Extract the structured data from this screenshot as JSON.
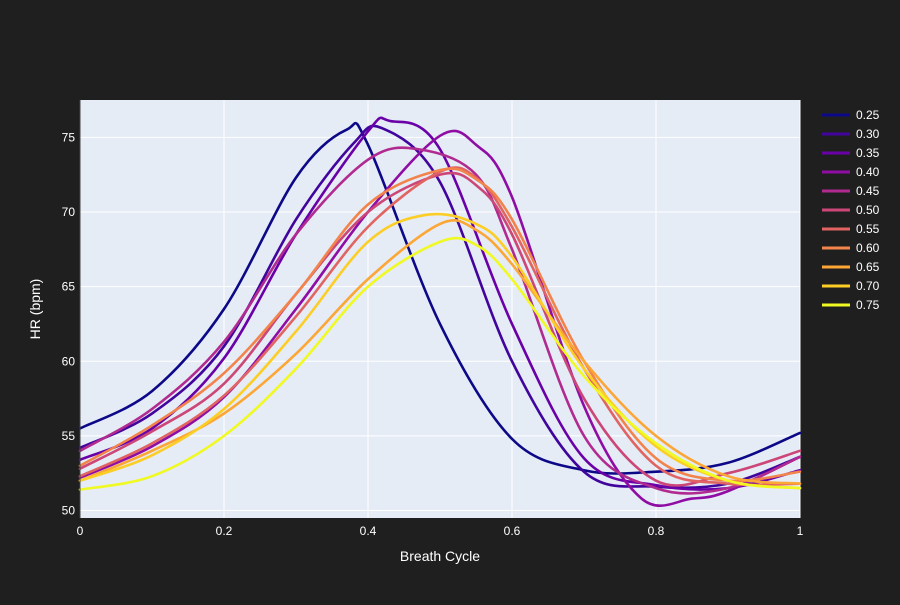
{
  "chart_data": {
    "type": "line",
    "title": "",
    "xlabel": "Breath Cycle",
    "ylabel": "HR (bpm)",
    "xlim": [
      0,
      1
    ],
    "ylim": [
      49.5,
      77.5
    ],
    "x_ticks": [
      0,
      0.2,
      0.4,
      0.6,
      0.8,
      1
    ],
    "x_tick_labels": [
      "0",
      "0.2",
      "0.4",
      "0.6",
      "0.8",
      "1"
    ],
    "y_ticks": [
      50,
      55,
      60,
      65,
      70,
      75
    ],
    "y_tick_labels": [
      "50",
      "55",
      "60",
      "65",
      "70",
      "75"
    ],
    "grid": true,
    "legend_position": "right",
    "plot_background": "#e5ecf6",
    "paper_background": "#1f1f1f",
    "x": [
      0,
      0.1,
      0.2,
      0.3,
      0.4,
      0.5,
      0.6,
      0.7,
      0.8,
      0.9,
      1
    ],
    "series": [
      {
        "name": "0.25",
        "color": "#0d0887",
        "points": [
          [
            0,
            55.5
          ],
          [
            0.1,
            58.0
          ],
          [
            0.2,
            63.5
          ],
          [
            0.3,
            72.3
          ],
          [
            0.37,
            75.5
          ],
          [
            0.4,
            74.5
          ],
          [
            0.5,
            62.5
          ],
          [
            0.6,
            54.8
          ],
          [
            0.7,
            52.7
          ],
          [
            0.8,
            52.6
          ],
          [
            0.9,
            53.2
          ],
          [
            1,
            55.2
          ]
        ]
      },
      {
        "name": "0.30",
        "color": "#41049d",
        "points": [
          [
            0,
            54.2
          ],
          [
            0.1,
            56.5
          ],
          [
            0.2,
            61.0
          ],
          [
            0.3,
            69.5
          ],
          [
            0.38,
            74.6
          ],
          [
            0.42,
            75.6
          ],
          [
            0.5,
            72.0
          ],
          [
            0.6,
            60.0
          ],
          [
            0.7,
            52.6
          ],
          [
            0.8,
            51.6
          ],
          [
            0.9,
            51.8
          ],
          [
            1,
            53.6
          ]
        ]
      },
      {
        "name": "0.35",
        "color": "#6a00a8",
        "points": [
          [
            0,
            53.4
          ],
          [
            0.1,
            55.5
          ],
          [
            0.2,
            60.2
          ],
          [
            0.3,
            68.5
          ],
          [
            0.4,
            75.4
          ],
          [
            0.43,
            76.1
          ],
          [
            0.5,
            74.2
          ],
          [
            0.6,
            62.5
          ],
          [
            0.7,
            53.5
          ],
          [
            0.8,
            51.7
          ],
          [
            0.9,
            51.5
          ],
          [
            1,
            52.7
          ]
        ]
      },
      {
        "name": "0.40",
        "color": "#8f0da4",
        "points": [
          [
            0,
            52.2
          ],
          [
            0.1,
            54.3
          ],
          [
            0.2,
            57.6
          ],
          [
            0.3,
            63.5
          ],
          [
            0.4,
            70.0
          ],
          [
            0.5,
            75.1
          ],
          [
            0.55,
            74.5
          ],
          [
            0.6,
            71.0
          ],
          [
            0.7,
            57.0
          ],
          [
            0.78,
            50.8
          ],
          [
            0.85,
            50.8
          ],
          [
            0.9,
            51.3
          ],
          [
            1,
            53.6
          ]
        ]
      },
      {
        "name": "0.45",
        "color": "#b12a90",
        "points": [
          [
            0,
            54.0
          ],
          [
            0.1,
            56.8
          ],
          [
            0.2,
            61.3
          ],
          [
            0.3,
            68.5
          ],
          [
            0.4,
            73.5
          ],
          [
            0.47,
            74.2
          ],
          [
            0.55,
            72.5
          ],
          [
            0.6,
            67.5
          ],
          [
            0.7,
            55.0
          ],
          [
            0.8,
            51.5
          ],
          [
            0.9,
            51.5
          ],
          [
            1,
            53.6
          ]
        ]
      },
      {
        "name": "0.50",
        "color": "#cc4778",
        "points": [
          [
            0,
            52.8
          ],
          [
            0.1,
            55.3
          ],
          [
            0.2,
            58.5
          ],
          [
            0.3,
            64.5
          ],
          [
            0.4,
            70.0
          ],
          [
            0.5,
            72.5
          ],
          [
            0.55,
            71.8
          ],
          [
            0.6,
            68.5
          ],
          [
            0.7,
            57.5
          ],
          [
            0.8,
            52.0
          ],
          [
            0.9,
            52.5
          ],
          [
            1,
            54.0
          ]
        ]
      },
      {
        "name": "0.55",
        "color": "#e16462",
        "points": [
          [
            0,
            52.3
          ],
          [
            0.1,
            54.5
          ],
          [
            0.2,
            57.7
          ],
          [
            0.3,
            63.0
          ],
          [
            0.4,
            69.0
          ],
          [
            0.5,
            72.7
          ],
          [
            0.55,
            72.3
          ],
          [
            0.6,
            69.0
          ],
          [
            0.7,
            59.5
          ],
          [
            0.8,
            53.0
          ],
          [
            0.9,
            51.8
          ],
          [
            1,
            51.8
          ]
        ]
      },
      {
        "name": "0.60",
        "color": "#f2844b",
        "points": [
          [
            0,
            53.0
          ],
          [
            0.1,
            55.7
          ],
          [
            0.2,
            59.2
          ],
          [
            0.3,
            64.5
          ],
          [
            0.4,
            70.5
          ],
          [
            0.5,
            72.8
          ],
          [
            0.55,
            72.2
          ],
          [
            0.6,
            69.5
          ],
          [
            0.7,
            60.0
          ],
          [
            0.8,
            53.5
          ],
          [
            0.9,
            52.0
          ],
          [
            1,
            52.6
          ]
        ]
      },
      {
        "name": "0.65",
        "color": "#fca636",
        "points": [
          [
            0,
            52.0
          ],
          [
            0.1,
            54.0
          ],
          [
            0.2,
            56.5
          ],
          [
            0.3,
            60.5
          ],
          [
            0.4,
            65.5
          ],
          [
            0.5,
            69.2
          ],
          [
            0.55,
            68.8
          ],
          [
            0.6,
            66.5
          ],
          [
            0.7,
            60.0
          ],
          [
            0.8,
            55.0
          ],
          [
            0.9,
            52.3
          ],
          [
            1,
            51.8
          ]
        ]
      },
      {
        "name": "0.70",
        "color": "#fcce25",
        "points": [
          [
            0,
            52.0
          ],
          [
            0.1,
            53.7
          ],
          [
            0.2,
            56.8
          ],
          [
            0.3,
            62.0
          ],
          [
            0.4,
            68.0
          ],
          [
            0.48,
            69.8
          ],
          [
            0.55,
            69.2
          ],
          [
            0.6,
            67.0
          ],
          [
            0.7,
            59.5
          ],
          [
            0.8,
            54.3
          ],
          [
            0.9,
            52.0
          ],
          [
            1,
            51.5
          ]
        ]
      },
      {
        "name": "0.75",
        "color": "#f0f921",
        "points": [
          [
            0,
            51.4
          ],
          [
            0.1,
            52.3
          ],
          [
            0.2,
            55.0
          ],
          [
            0.3,
            59.5
          ],
          [
            0.4,
            65.0
          ],
          [
            0.5,
            68.0
          ],
          [
            0.55,
            67.8
          ],
          [
            0.6,
            65.5
          ],
          [
            0.7,
            59.0
          ],
          [
            0.8,
            54.5
          ],
          [
            0.9,
            52.0
          ],
          [
            1,
            51.5
          ]
        ]
      }
    ]
  }
}
